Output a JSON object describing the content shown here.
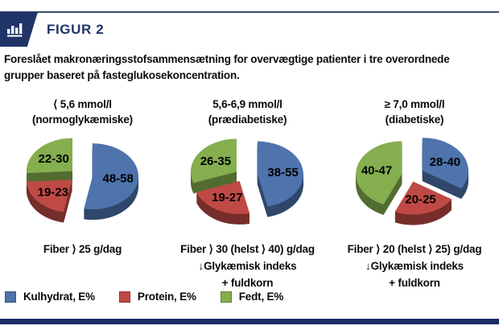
{
  "header": {
    "title": "FIGUR 2",
    "icon": "bar-chart-icon"
  },
  "colors": {
    "navy": "#203468",
    "top_rule": "#3c4c6d",
    "bottom_bar": "#1b2b66",
    "carbohydrate_blue": "#4e73ad",
    "protein_red": "#bf4a45",
    "fat_green": "#85ae4f"
  },
  "description_lines": [
    "Foreslået makronæringsstofsammensætning for overvægtige patienter i tre overordnede",
    "grupper baseret på fasteglukosekoncentration."
  ],
  "legend": {
    "items": [
      {
        "label": "Kulhydrat, E%",
        "color": "#4e73ad"
      },
      {
        "label": "Protein, E%",
        "color": "#bf4a45"
      },
      {
        "label": "Fedt, E%",
        "color": "#85ae4f"
      }
    ]
  },
  "chart_data": [
    {
      "type": "pie",
      "title": "⟨ 5,6 mmol/l",
      "subtitle": "(normoglykæmiske)",
      "slices": [
        {
          "name": "Kulhydrat, E%",
          "range": "48-58",
          "value": 53,
          "color": "#4e73ad"
        },
        {
          "name": "Protein, E%",
          "range": "19-23",
          "value": 21,
          "color": "#bf4a45"
        },
        {
          "name": "Fedt, E%",
          "range": "22-30",
          "value": 26,
          "color": "#85ae4f"
        }
      ],
      "caption_lines": [
        "Fiber ⟩ 25 g/dag"
      ]
    },
    {
      "type": "pie",
      "title": "5,6-6,9 mmol/l",
      "subtitle": "(prædiabetiske)",
      "slices": [
        {
          "name": "Kulhydrat, E%",
          "range": "38-55",
          "value": 46.5,
          "color": "#4e73ad"
        },
        {
          "name": "Protein, E%",
          "range": "19-27",
          "value": 23,
          "color": "#bf4a45"
        },
        {
          "name": "Fedt, E%",
          "range": "26-35",
          "value": 30.5,
          "color": "#85ae4f"
        }
      ],
      "caption_lines": [
        "Fiber ⟩ 30 (helst ⟩ 40) g/dag",
        "↓Glykæmisk indeks",
        "+ fuldkorn"
      ]
    },
    {
      "type": "pie",
      "title": "≥ 7,0 mmol/l",
      "subtitle": "(diabetiske)",
      "slices": [
        {
          "name": "Kulhydrat, E%",
          "range": "28-40",
          "value": 34,
          "color": "#4e73ad"
        },
        {
          "name": "Protein, E%",
          "range": "20-25",
          "value": 22.5,
          "color": "#bf4a45"
        },
        {
          "name": "Fedt, E%",
          "range": "40-47",
          "value": 43.5,
          "color": "#85ae4f"
        }
      ],
      "caption_lines": [
        "Fiber ⟩ 20 (helst ⟩ 25) g/dag",
        "↓Glykæmisk indeks",
        "+ fuldkorn"
      ]
    }
  ]
}
